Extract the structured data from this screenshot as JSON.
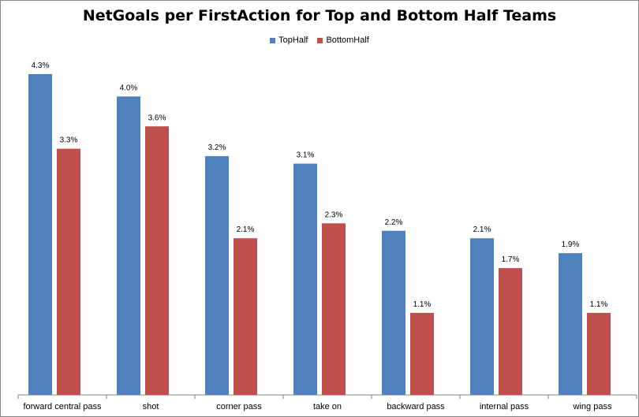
{
  "chart_data": {
    "type": "bar",
    "title": "NetGoals per FirstAction for Top and Bottom Half Teams",
    "xlabel": "",
    "ylabel": "",
    "categories": [
      "forward central pass",
      "shot",
      "corner pass",
      "take on",
      "backward pass",
      "internal pass",
      "wing pass"
    ],
    "series": [
      {
        "name": "TopHalf",
        "color": "#4f81bd",
        "values": [
          4.3,
          4.0,
          3.2,
          3.1,
          2.2,
          2.1,
          1.9
        ],
        "labels": [
          "4.3%",
          "4.0%",
          "3.2%",
          "3.1%",
          "2.2%",
          "2.1%",
          "1.9%"
        ]
      },
      {
        "name": "BottomHalf",
        "color": "#c0504d",
        "values": [
          3.3,
          3.6,
          2.1,
          2.3,
          1.1,
          1.7,
          1.1
        ],
        "labels": [
          "3.3%",
          "3.6%",
          "2.1%",
          "2.3%",
          "1.1%",
          "1.7%",
          "1.1%"
        ]
      }
    ],
    "ylim": [
      0,
      4.3
    ],
    "grid": false,
    "legend_position": "top"
  }
}
